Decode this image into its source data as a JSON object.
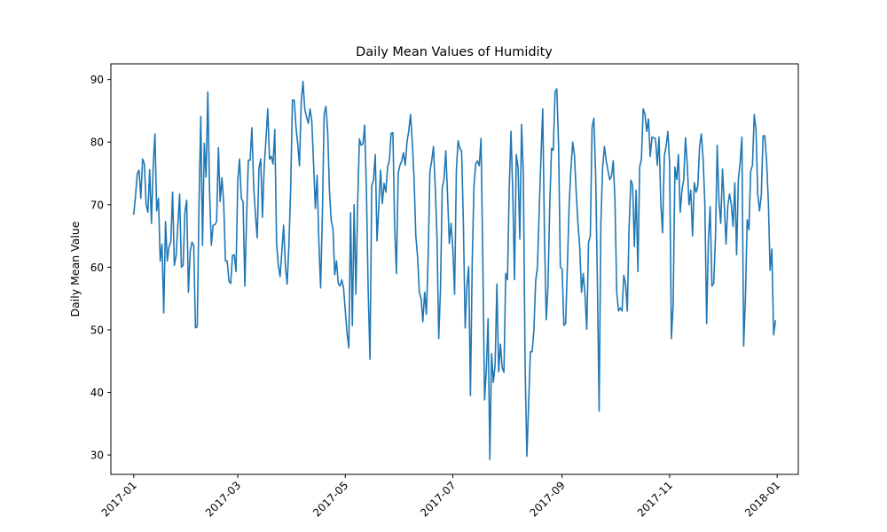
{
  "chart_data": {
    "type": "line",
    "title": "Daily Mean Values of Humidity",
    "xlabel": "",
    "ylabel": "Daily Mean Value",
    "x_start": "2017-01-01",
    "x_end": "2017-12-31",
    "xlim": [
      "2016-12-19",
      "2018-01-13"
    ],
    "ylim": [
      26.9,
      92.5
    ],
    "x_ticks": [
      {
        "date": "2017-01-01",
        "label": "2017-01"
      },
      {
        "date": "2017-03-01",
        "label": "2017-03"
      },
      {
        "date": "2017-05-01",
        "label": "2017-05"
      },
      {
        "date": "2017-07-01",
        "label": "2017-07"
      },
      {
        "date": "2017-09-01",
        "label": "2017-09"
      },
      {
        "date": "2017-11-01",
        "label": "2017-11"
      },
      {
        "date": "2018-01-01",
        "label": "2018-01"
      }
    ],
    "y_ticks": [
      30,
      40,
      50,
      60,
      70,
      80,
      90
    ],
    "grid": false,
    "color": "#1f77b4",
    "series": [
      {
        "values": [
          68.5,
          71.5,
          75.0,
          75.5,
          71.0,
          77.3,
          76.5,
          70.0,
          68.8,
          75.6,
          67.0,
          76.0,
          81.3,
          69.0,
          71.0,
          61.0,
          63.7,
          52.7,
          67.3,
          61.0,
          63.3,
          64.0,
          72.0,
          60.3,
          61.8,
          66.8,
          71.7,
          60.0,
          60.3,
          68.8,
          70.7,
          56.0,
          62.5,
          64.0,
          63.5,
          50.3,
          50.5,
          70.0,
          84.1,
          63.5,
          79.8,
          74.4,
          88.0,
          72.0,
          63.5,
          66.7,
          66.8,
          67.3,
          79.1,
          70.5,
          74.3,
          70.4,
          61.0,
          61.0,
          57.8,
          57.4,
          61.9,
          62.0,
          59.3,
          73.9,
          77.3,
          71.0,
          70.5,
          57.0,
          68.0,
          77.1,
          77.1,
          82.3,
          73.0,
          68.5,
          64.7,
          75.8,
          77.3,
          68.0,
          76.0,
          80.5,
          85.3,
          77.3,
          77.7,
          76.5,
          82.0,
          64.0,
          60.3,
          58.5,
          62.5,
          66.7,
          60.3,
          57.3,
          63.5,
          72.4,
          86.7,
          86.7,
          82.5,
          79.7,
          76.2,
          86.5,
          89.7,
          85.3,
          84.0,
          83.0,
          85.3,
          83.3,
          76.5,
          69.4,
          74.7,
          64.0,
          56.7,
          68.5,
          84.5,
          85.7,
          81.7,
          72.3,
          67.4,
          66.2,
          58.8,
          61.0,
          57.4,
          57.0,
          58.0,
          56.7,
          53.0,
          49.5,
          47.1,
          68.7,
          50.7,
          70.0,
          55.7,
          70.0,
          80.5,
          79.5,
          79.7,
          82.7,
          72.0,
          56.0,
          45.3,
          73.0,
          74.0,
          78.0,
          64.2,
          69.7,
          75.5,
          70.2,
          73.4,
          72.0,
          76.0,
          77.1,
          81.4,
          81.5,
          66.5,
          59.0,
          75.0,
          76.3,
          77.0,
          78.3,
          76.3,
          80.0,
          81.8,
          84.4,
          80.0,
          74.3,
          65.0,
          61.7,
          56.0,
          55.0,
          51.3,
          56.0,
          52.5,
          61.5,
          75.3,
          77.0,
          79.3,
          73.0,
          65.0,
          48.6,
          56.5,
          72.7,
          74.0,
          78.6,
          71.6,
          63.8,
          67.0,
          63.0,
          55.7,
          75.5,
          80.2,
          79.0,
          78.5,
          66.8,
          50.3,
          57.0,
          60.1,
          39.5,
          60.7,
          73.0,
          76.5,
          77.0,
          76.2,
          80.6,
          61.5,
          38.8,
          43.5,
          51.8,
          29.3,
          46.2,
          41.6,
          44.5,
          57.3,
          43.3,
          47.7,
          44.0,
          43.2,
          59.0,
          58.0,
          72.5,
          81.7,
          72.0,
          58.0,
          78.0,
          76.0,
          64.5,
          82.8,
          75.0,
          44.5,
          29.8,
          38.0,
          46.5,
          46.5,
          50.0,
          57.8,
          60.0,
          69.0,
          77.5,
          85.3,
          65.0,
          51.6,
          57.0,
          70.0,
          79.0,
          78.7,
          88.0,
          88.5,
          79.5,
          60.0,
          59.7,
          50.7,
          51.0,
          60.3,
          70.0,
          75.6,
          80.0,
          77.9,
          72.0,
          67.0,
          63.2,
          56.0,
          59.0,
          55.5,
          50.1,
          64.0,
          65.0,
          82.3,
          83.8,
          75.3,
          58.0,
          37.0,
          67.0,
          76.0,
          79.3,
          77.0,
          75.5,
          74.0,
          74.5,
          77.0,
          70.5,
          56.0,
          53.0,
          53.5,
          53.0,
          58.7,
          57.3,
          53.0,
          66.3,
          73.9,
          73.1,
          63.3,
          72.3,
          59.3,
          76.0,
          77.3,
          85.3,
          84.5,
          81.7,
          83.7,
          77.7,
          80.8,
          80.7,
          80.5,
          76.3,
          80.8,
          70.3,
          65.5,
          77.8,
          79.3,
          81.7,
          76.6,
          48.6,
          54.0,
          76.0,
          74.0,
          78.0,
          68.8,
          72.3,
          74.0,
          80.7,
          76.5,
          70.0,
          72.3,
          65.0,
          73.5,
          72.0,
          73.0,
          79.3,
          81.3,
          77.3,
          70.0,
          51.0,
          64.3,
          69.7,
          57.0,
          57.4,
          64.7,
          79.5,
          70.5,
          67.0,
          75.7,
          70.0,
          63.7,
          69.8,
          71.7,
          70.0,
          66.5,
          73.5,
          62.0,
          74.0,
          76.7,
          80.8,
          47.4,
          55.0,
          67.6,
          66.0,
          75.4,
          76.3,
          84.4,
          82.0,
          71.7,
          69.0,
          71.5,
          81.0,
          81.0,
          77.0,
          70.5,
          59.5,
          62.9,
          49.2,
          51.4
        ]
      }
    ]
  }
}
